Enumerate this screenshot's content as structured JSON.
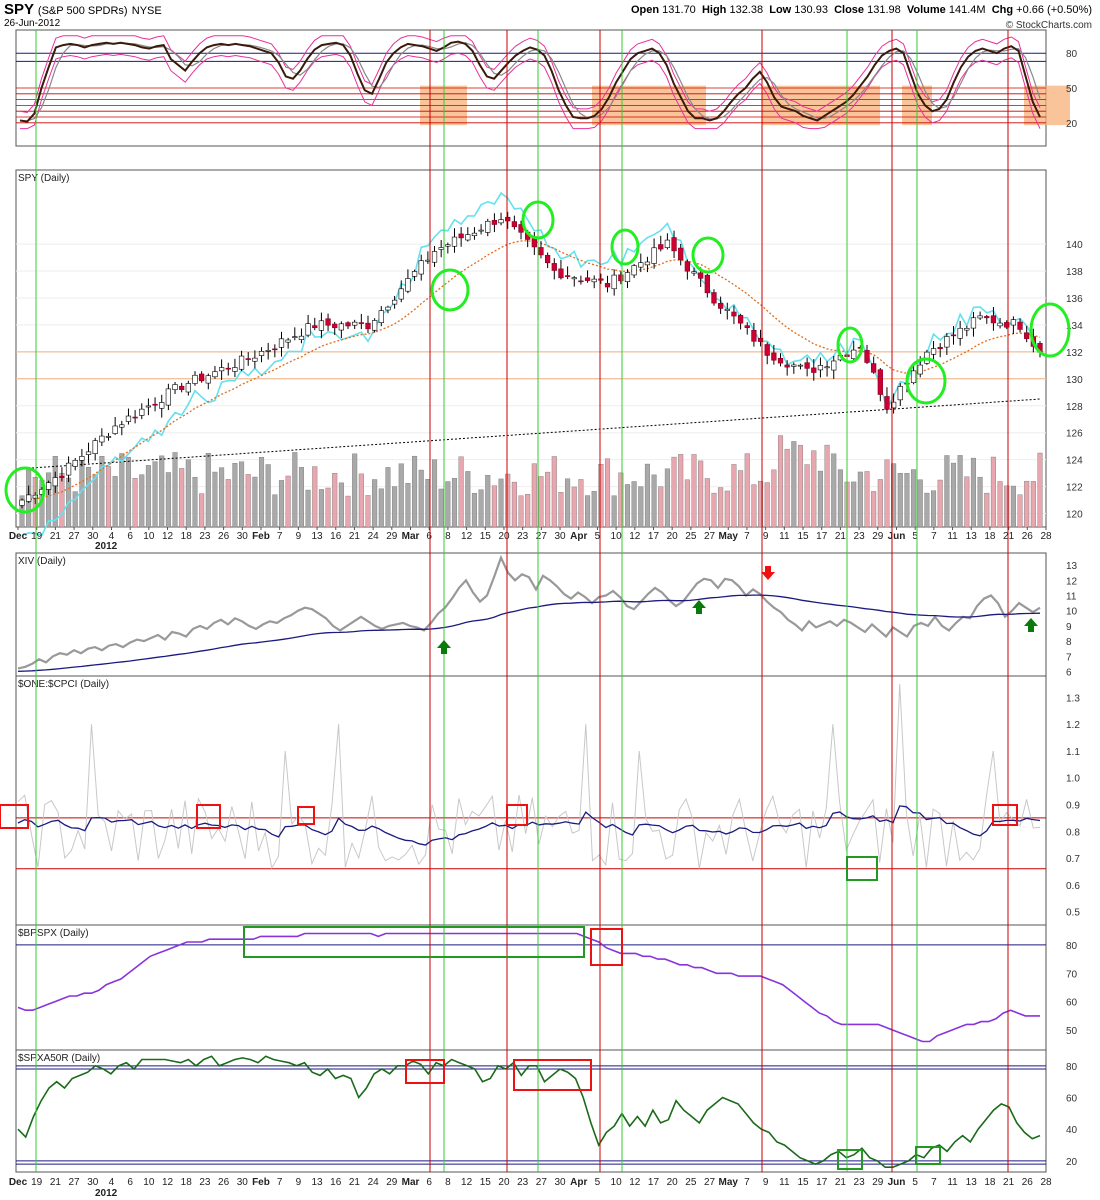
{
  "header": {
    "symbol": "SPY",
    "symbol_desc": "(S&P 500 SPDRs)",
    "exchange": "NYSE",
    "date": "26-Jun-2012",
    "open_label": "Open",
    "open": "131.70",
    "high_label": "High",
    "high": "132.38",
    "low_label": "Low",
    "low": "130.93",
    "close_label": "Close",
    "close": "131.98",
    "volume_label": "Volume",
    "volume": "141.4M",
    "chg_label": "Chg",
    "chg": "+0.66 (+0.50%)",
    "copyright": "© StockCharts.com"
  },
  "colors": {
    "up_candle": "#ffffff",
    "down_candle": "#cc0033",
    "black_candle": "#000000",
    "ema": "#e26d1a",
    "ma200": "#000000",
    "overlay": "#66e0ee",
    "vol_up": "#a9a9a9",
    "vol_down": "#e8a6ae",
    "stoch_k": "#3a1a0a",
    "stoch_d": "#888888",
    "stoch_band": "#e7329a",
    "shade": "#f7b078",
    "redline": "#cc0000",
    "greenline": "#33cc33",
    "navy": "#1a1a80",
    "gray_line": "#999999",
    "purple": "#8833dd",
    "dkgreen": "#1a6a1a"
  },
  "chart_data": [
    {
      "type": "line",
      "panel": "stochastic",
      "series": [],
      "y_ticks": [
        "80",
        "50",
        "20"
      ],
      "ylim": [
        0,
        100
      ],
      "k": [
        22,
        21,
        28,
        50,
        68,
        85,
        87,
        88,
        87,
        85,
        87,
        88,
        89,
        88,
        89,
        88,
        87,
        85,
        84,
        86,
        87,
        75,
        70,
        65,
        73,
        80,
        85,
        87,
        88,
        87,
        88,
        87,
        86,
        84,
        82,
        80,
        72,
        60,
        58,
        65,
        75,
        83,
        87,
        88,
        89,
        87,
        78,
        62,
        48,
        45,
        58,
        72,
        80,
        85,
        88,
        87,
        86,
        84,
        82,
        85,
        89,
        90,
        88,
        82,
        70,
        60,
        58,
        65,
        72,
        78,
        82,
        85,
        83,
        78,
        65,
        48,
        35,
        25,
        24,
        24,
        26,
        32,
        42,
        55,
        65,
        75,
        80,
        82,
        84,
        80,
        70,
        54,
        42,
        30,
        24,
        24,
        22,
        24,
        30,
        38,
        45,
        50,
        58,
        64,
        55,
        42,
        34,
        32,
        30,
        26,
        24,
        22,
        26,
        30,
        34,
        38,
        44,
        52,
        60,
        70,
        78,
        82,
        84,
        80,
        62,
        45,
        35,
        30,
        32,
        40,
        55,
        68,
        77,
        82,
        84,
        82,
        80,
        84,
        86,
        82,
        60,
        38,
        25
      ]
    },
    {
      "type": "bar",
      "panel": "price",
      "title": "SPY (Daily)",
      "y_ticks": [
        "140",
        "138",
        "136",
        "134",
        "132",
        "130",
        "128",
        "126",
        "124",
        "122",
        "120"
      ],
      "ylim": [
        119,
        145.5
      ],
      "x_ticks": [
        "Dec",
        "19",
        "21",
        "27",
        "30",
        "4",
        "6",
        "10",
        "12",
        "18",
        "23",
        "26",
        "30",
        "Feb",
        "7",
        "9",
        "13",
        "16",
        "21",
        "24",
        "29",
        "Mar",
        "6",
        "8",
        "12",
        "15",
        "20",
        "23",
        "27",
        "30",
        "Apr",
        "5",
        "10",
        "12",
        "17",
        "20",
        "25",
        "27",
        "May",
        "7",
        "9",
        "11",
        "15",
        "17",
        "21",
        "23",
        "29",
        "Jun",
        "5",
        "7",
        "11",
        "13",
        "18",
        "21",
        "26",
        "28"
      ],
      "year_label": "2012",
      "close_start": 121.0,
      "close_end": 131.98,
      "ma200_start": 123.3,
      "ma200_end": 128.5
    },
    {
      "type": "line",
      "panel": "xiv",
      "title": "XIV (Daily)",
      "y_ticks": [
        "13",
        "12",
        "11",
        "10",
        "9",
        "8",
        "7",
        "6"
      ],
      "ylim": [
        5.7,
        13.8
      ],
      "price": [
        6.2,
        6.3,
        6.5,
        6.8,
        6.6,
        7.0,
        7.2,
        7.1,
        7.4,
        7.2,
        7.5,
        7.6,
        7.4,
        7.7,
        7.8,
        7.6,
        7.9,
        8.1,
        8.0,
        8.2,
        8.4,
        8.1,
        8.6,
        8.5,
        8.3,
        8.8,
        9.0,
        8.8,
        9.2,
        9.4,
        9.1,
        9.5,
        9.3,
        9.0,
        8.8,
        9.1,
        9.3,
        9.2,
        9.5,
        9.7,
        10.0,
        10.2,
        10.1,
        9.8,
        9.5,
        9.0,
        8.7,
        9.0,
        9.3,
        9.6,
        9.3,
        9.0,
        8.8,
        9.0,
        9.1,
        9.2,
        9.0,
        8.9,
        8.7,
        9.2,
        9.8,
        10.2,
        10.8,
        11.5,
        12.0,
        11.2,
        10.6,
        11.0,
        12.2,
        13.5,
        12.5,
        12.0,
        12.4,
        12.2,
        11.4,
        12.3,
        12.0,
        11.6,
        11.1,
        10.8,
        11.2,
        10.9,
        10.5,
        10.9,
        11.0,
        11.3,
        10.9,
        10.3,
        10.1,
        10.6,
        11.1,
        11.5,
        11.2,
        10.7,
        10.3,
        10.6,
        11.2,
        11.8,
        12.1,
        12.0,
        11.5,
        12.1,
        12.0,
        11.6,
        11.0,
        11.4,
        11.1,
        10.6,
        10.2,
        9.9,
        9.4,
        9.1,
        8.7,
        9.3,
        8.9,
        9.1,
        9.3,
        9.0,
        9.4,
        9.2,
        8.9,
        8.6,
        9.1,
        8.7,
        8.3,
        8.9,
        8.6,
        8.3,
        9.0,
        9.2,
        9.0,
        9.6,
        9.0,
        8.7,
        9.2,
        9.6,
        9.5,
        10.3,
        10.8,
        11.0,
        10.5,
        9.6,
        10.0,
        10.5,
        10.2,
        9.9,
        10.2
      ],
      "ma_start": 6.0,
      "ma_end": 10.0
    },
    {
      "type": "line",
      "panel": "putcall",
      "title": "$ONE:$CPCI (Daily)",
      "y_ticks": [
        "1.3",
        "1.2",
        "1.1",
        "1.0",
        "0.9",
        "0.8",
        "0.7",
        "0.6",
        "0.5"
      ],
      "ylim": [
        0.45,
        1.38
      ],
      "hlines": [
        0.85,
        0.66
      ]
    },
    {
      "type": "line",
      "panel": "bpspx",
      "title": "$BPSPX (Daily)",
      "y_ticks": [
        "80",
        "70",
        "60",
        "50"
      ],
      "ylim": [
        43,
        87
      ],
      "values": [
        58,
        57,
        57,
        58,
        59,
        60,
        61,
        62,
        62,
        63,
        63,
        64,
        66,
        67,
        68,
        70,
        72,
        74,
        76,
        77,
        78,
        79,
        80,
        81,
        81,
        81,
        82,
        82,
        82,
        82,
        82,
        82,
        82,
        83,
        83,
        83,
        83,
        83,
        83,
        84,
        84,
        84,
        84,
        84,
        84,
        84,
        84,
        84,
        84,
        83,
        84,
        84,
        84,
        84,
        84,
        84,
        84,
        84,
        84,
        84,
        84,
        84,
        84,
        84,
        84,
        84,
        84,
        84,
        84,
        84,
        84,
        84,
        84,
        84,
        84,
        84,
        84,
        83,
        82,
        81,
        79,
        78,
        77,
        77,
        77,
        76,
        76,
        75,
        75,
        74,
        73,
        73,
        72,
        72,
        71,
        70,
        70,
        70,
        69,
        69,
        69,
        69,
        68,
        67,
        66,
        64,
        62,
        60,
        58,
        56,
        55,
        53,
        52,
        52,
        52,
        52,
        52,
        52,
        51,
        50,
        49,
        48,
        47,
        46,
        46,
        48,
        49,
        50,
        51,
        52,
        52,
        53,
        53,
        54,
        56,
        57,
        56,
        55,
        55,
        55
      ]
    },
    {
      "type": "line",
      "panel": "spxa50r",
      "title": "$SPXA50R (Daily)",
      "y_ticks": [
        "80",
        "60",
        "40",
        "20"
      ],
      "ylim": [
        13,
        90
      ],
      "values": [
        40,
        35,
        48,
        58,
        66,
        70,
        66,
        72,
        74,
        76,
        80,
        78,
        75,
        80,
        82,
        78,
        84,
        84,
        84,
        84,
        83,
        82,
        84,
        80,
        84,
        86,
        80,
        82,
        84,
        85,
        84,
        82,
        86,
        84,
        83,
        82,
        80,
        82,
        76,
        74,
        78,
        72,
        74,
        72,
        60,
        66,
        75,
        78,
        75,
        80,
        80,
        83,
        81,
        75,
        82,
        80,
        84,
        82,
        80,
        78,
        70,
        72,
        80,
        78,
        82,
        74,
        80,
        80,
        70,
        74,
        78,
        76,
        72,
        60,
        44,
        30,
        38,
        42,
        50,
        42,
        48,
        42,
        52,
        44,
        46,
        58,
        52,
        48,
        44,
        52,
        56,
        60,
        58,
        56,
        50,
        44,
        40,
        38,
        32,
        30,
        26,
        22,
        20,
        18,
        20,
        24,
        26,
        22,
        24,
        28,
        22,
        20,
        16,
        16,
        18,
        20,
        24,
        22,
        28,
        30,
        26,
        32,
        36,
        32,
        40,
        46,
        52,
        56,
        54,
        44,
        38,
        34,
        36
      ]
    }
  ],
  "annotations": {
    "arrows": [
      {
        "color": "green",
        "direction": "up",
        "panel": "xiv"
      },
      {
        "color": "green",
        "direction": "up",
        "panel": "xiv"
      },
      {
        "color": "red",
        "direction": "down",
        "panel": "xiv"
      },
      {
        "color": "green",
        "direction": "up",
        "panel": "xiv"
      }
    ]
  }
}
